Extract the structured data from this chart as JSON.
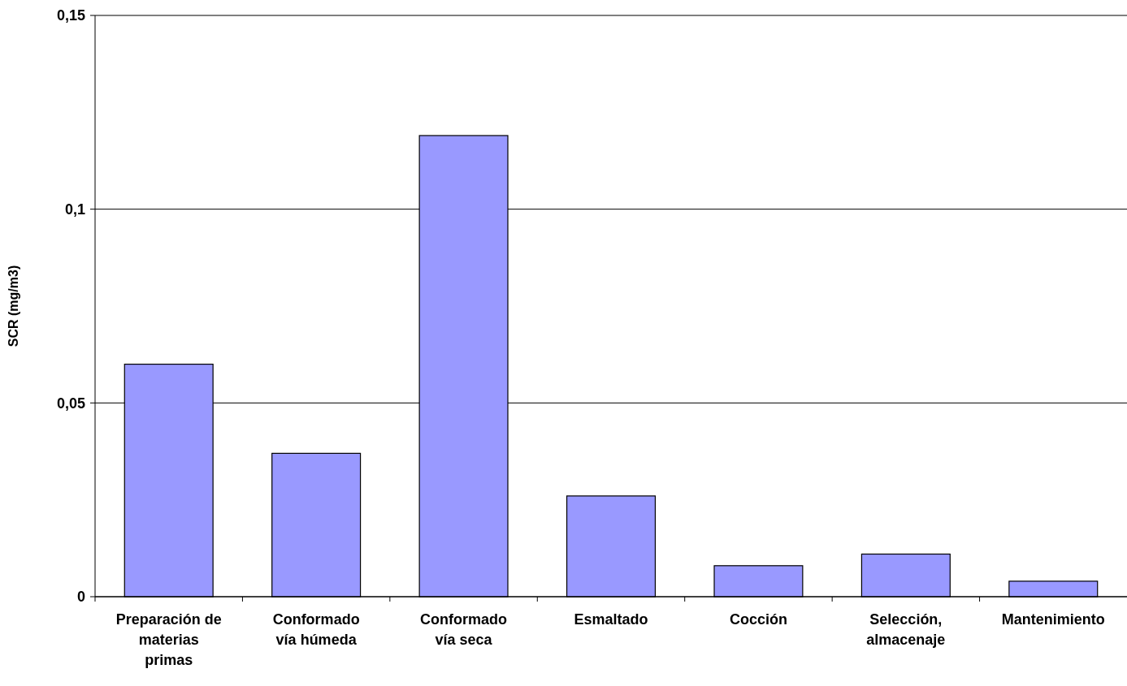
{
  "chart_data": {
    "type": "bar",
    "ylabel": "SCR (mg/m3)",
    "categories": [
      "Preparación de\nmaterias\nprimas",
      "Conformado\nvía húmeda",
      "Conformado\nvía seca",
      "Esmaltado",
      "Cocción",
      "Selección,\nalmacenaje",
      "Mantenimiento"
    ],
    "values": [
      0.06,
      0.037,
      0.119,
      0.026,
      0.008,
      0.011,
      0.004
    ],
    "color": "#9999ff",
    "ylim": [
      0,
      0.15
    ],
    "yticks": [
      {
        "value": 0,
        "label": "0"
      },
      {
        "value": 0.05,
        "label": "0,05"
      },
      {
        "value": 0.1,
        "label": "0,1"
      },
      {
        "value": 0.15,
        "label": "0,15"
      }
    ],
    "grid": "y"
  }
}
